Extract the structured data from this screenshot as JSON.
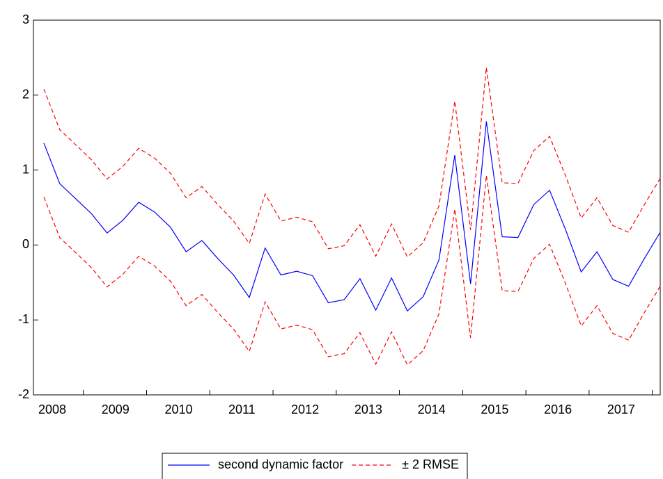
{
  "chart_data": {
    "type": "line",
    "categories": [
      "2008",
      null,
      null,
      null,
      "2009",
      null,
      null,
      null,
      "2010",
      null,
      null,
      null,
      "2011",
      null,
      null,
      null,
      "2012",
      null,
      null,
      null,
      "2013",
      null,
      null,
      null,
      "2014",
      null,
      null,
      null,
      "2015",
      null,
      null,
      null,
      "2016",
      null,
      null,
      null,
      "2017",
      null,
      null,
      null
    ],
    "series": [
      {
        "name": "second dynamic factor",
        "color": "#0000ff",
        "dash": false,
        "values": [
          1.36,
          0.82,
          0.62,
          0.42,
          0.16,
          0.33,
          0.57,
          0.44,
          0.24,
          -0.09,
          0.06,
          -0.18,
          -0.4,
          -0.7,
          -0.04,
          -0.4,
          -0.35,
          -0.41,
          -0.77,
          -0.73,
          -0.45,
          -0.87,
          -0.44,
          -0.88,
          -0.69,
          -0.2,
          1.2,
          -0.52,
          1.65,
          0.11,
          0.1,
          0.54,
          0.73,
          0.21,
          -0.36,
          -0.09,
          -0.46,
          -0.55,
          -0.18,
          0.17
        ]
      },
      {
        "name": "± 2 RMSE",
        "color": "#ff0000",
        "dash": true,
        "values": [
          2.08,
          1.54,
          1.34,
          1.14,
          0.88,
          1.05,
          1.29,
          1.16,
          0.96,
          0.63,
          0.78,
          0.54,
          0.32,
          0.02,
          0.68,
          0.32,
          0.37,
          0.31,
          -0.05,
          -0.01,
          0.27,
          -0.15,
          0.28,
          -0.16,
          0.03,
          0.52,
          1.92,
          0.2,
          2.37,
          0.83,
          0.82,
          1.26,
          1.45,
          0.93,
          0.36,
          0.63,
          0.26,
          0.17,
          0.54,
          0.89
        ]
      },
      {
        "color": "#ff0000",
        "dash": true,
        "values": [
          0.64,
          0.1,
          -0.1,
          -0.3,
          -0.56,
          -0.39,
          -0.15,
          -0.28,
          -0.48,
          -0.81,
          -0.66,
          -0.9,
          -1.12,
          -1.42,
          -0.76,
          -1.12,
          -1.07,
          -1.13,
          -1.49,
          -1.45,
          -1.17,
          -1.59,
          -1.16,
          -1.6,
          -1.41,
          -0.92,
          0.48,
          -1.24,
          0.93,
          -0.61,
          -0.62,
          -0.18,
          0.01,
          -0.51,
          -1.08,
          -0.81,
          -1.18,
          -1.27,
          -0.9,
          -0.55
        ]
      }
    ],
    "ylim": [
      -2,
      3
    ],
    "yticks": [
      -2,
      -1,
      0,
      1,
      2,
      3
    ],
    "grid": false
  }
}
